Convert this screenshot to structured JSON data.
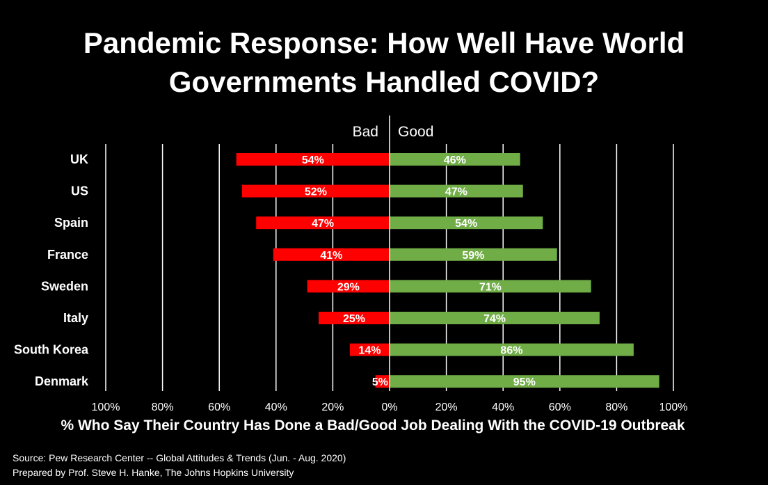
{
  "title_lines": [
    "Pandemic Response: How Well Have World",
    "Governments Handled COVID?"
  ],
  "side_labels": {
    "bad": "Bad",
    "good": "Good"
  },
  "colors": {
    "bad": "#ff0000",
    "good": "#70ad47",
    "background": "#000000",
    "text": "#ffffff",
    "grid": "#ffffff"
  },
  "chart_data": {
    "type": "bar",
    "orientation": "horizontal-diverging",
    "categories": [
      "UK",
      "US",
      "Spain",
      "France",
      "Sweden",
      "Italy",
      "South Korea",
      "Denmark"
    ],
    "series": [
      {
        "name": "Bad",
        "values": [
          54,
          52,
          47,
          41,
          29,
          25,
          14,
          5
        ]
      },
      {
        "name": "Good",
        "values": [
          46,
          47,
          54,
          59,
          71,
          74,
          86,
          95
        ]
      }
    ],
    "data_labels": {
      "bad": [
        "54%",
        "52%",
        "47%",
        "41%",
        "29%",
        "25%",
        "14%",
        "5%"
      ],
      "good": [
        "46%",
        "47%",
        "54%",
        "59%",
        "71%",
        "74%",
        "86%",
        "95%"
      ]
    },
    "xlim": [
      -100,
      100
    ],
    "xticks": [
      -100,
      -80,
      -60,
      -40,
      -20,
      0,
      20,
      40,
      60,
      80,
      100
    ],
    "xtick_labels": [
      "100%",
      "80%",
      "60%",
      "40%",
      "20%",
      "0%",
      "20%",
      "40%",
      "60%",
      "80%",
      "100%"
    ],
    "xlabel": "% Who Say Their Country Has Done a Bad/Good Job Dealing With the COVID-19 Outbreak",
    "grid": true,
    "legend": "none"
  },
  "footnotes": {
    "source": "Source: Pew Research Center -- Global Attitudes & Trends (Jun. - Aug. 2020)",
    "prepared": "Prepared by Prof. Steve H. Hanke, The Johns Hopkins University"
  }
}
